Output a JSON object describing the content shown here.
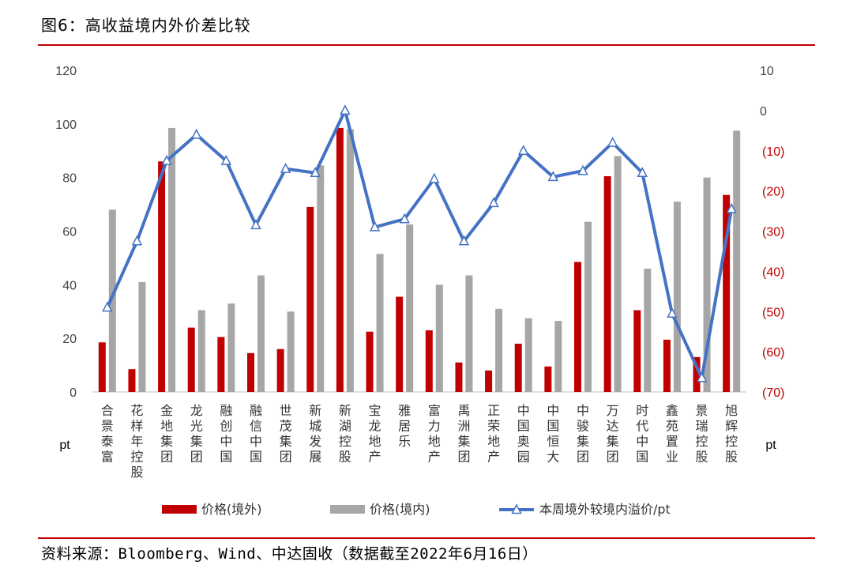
{
  "title": "图6：高收益境内外价差比较",
  "source": "资料来源：Bloomberg、Wind、中达固收（数据截至2022年6月16日）",
  "colors": {
    "overseas": "#c00000",
    "domestic": "#a6a6a6",
    "spread": "#4472c4",
    "rule": "#c00000"
  },
  "chart_data": {
    "type": "bar",
    "categories": [
      "合景泰富",
      "花样年控股",
      "金地集团",
      "龙光集团",
      "融创中国",
      "融信中国",
      "世茂集团",
      "新城发展",
      "新湖控股",
      "宝龙地产",
      "雅居乐",
      "富力地产",
      "禹洲集团",
      "正荣地产",
      "中国奥园",
      "中国恒大",
      "中骏集团",
      "万达集团",
      "时代中国",
      "鑫苑置业",
      "景瑞控股",
      "旭辉控股"
    ],
    "series": [
      {
        "name": "价格(境外)",
        "type": "bar",
        "axis": "left",
        "values": [
          18.5,
          8.5,
          86,
          24,
          20.5,
          14.5,
          16,
          69,
          98.5,
          22.5,
          35.5,
          23,
          11,
          8,
          18,
          9.5,
          48.5,
          80.5,
          30.5,
          19.5,
          13,
          73.5
        ]
      },
      {
        "name": "价格(境内)",
        "type": "bar",
        "axis": "left",
        "values": [
          68,
          41,
          98.5,
          30.5,
          33,
          43.5,
          30,
          84.5,
          98,
          51.5,
          62.5,
          40,
          43.5,
          31,
          27.5,
          26.5,
          63.5,
          88,
          46,
          71,
          80,
          97.5
        ]
      },
      {
        "name": "本周境外较境内溢价/pt",
        "type": "line",
        "axis": "right",
        "values": [
          -49,
          -32.5,
          -12.5,
          -6,
          -12.5,
          -28.5,
          -14.5,
          -15.5,
          0,
          -29,
          -27,
          -17,
          -32.5,
          -23,
          -10,
          -16.5,
          -15,
          -8,
          -15.5,
          -50.5,
          -66.5,
          -24.5
        ]
      }
    ],
    "y_left": {
      "lim": [
        0,
        120
      ],
      "ticks": [
        "0",
        "20",
        "40",
        "60",
        "80",
        "100",
        "120"
      ],
      "unit": "pt"
    },
    "y_right": {
      "lim": [
        -70,
        10
      ],
      "ticks": [
        "(70)",
        "(60)",
        "(50)",
        "(40)",
        "(30)",
        "(20)",
        "(10)",
        "0",
        "10"
      ],
      "unit": "pt"
    },
    "grid": false,
    "legend_position": "bottom"
  }
}
